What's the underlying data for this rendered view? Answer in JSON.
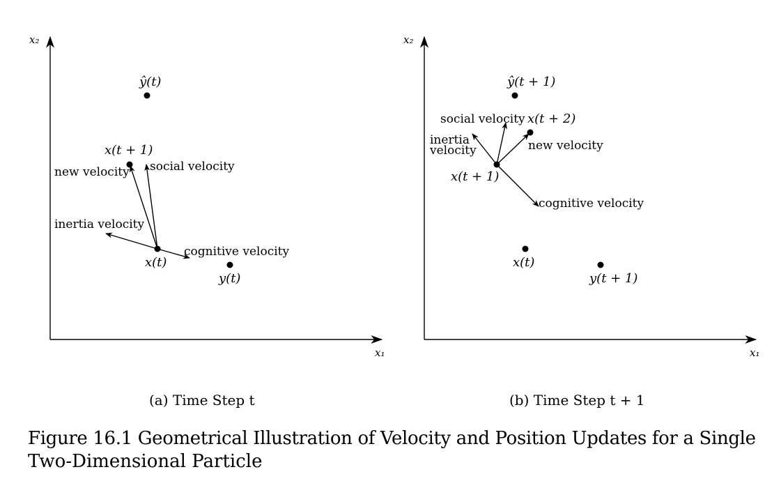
{
  "panel_a": {
    "x_axis_label": "x₁",
    "y_axis_label": "x₂",
    "label_yhat": "ŷ(t)",
    "label_x_next": "x(t + 1)",
    "label_new_velocity": "new velocity",
    "label_social_velocity": "social velocity",
    "label_inertia_velocity": "inertia velocity",
    "label_cognitive_velocity": "cognitive velocity",
    "label_x": "x(t)",
    "label_y": "y(t)",
    "caption": "(a) Time Step t"
  },
  "panel_b": {
    "x_axis_label": "x₁",
    "y_axis_label": "x₂",
    "label_yhat": "ŷ(t + 1)",
    "label_social_velocity": "social velocity",
    "label_x_next2": "x(t + 2)",
    "label_inertia_line1": "inertia",
    "label_inertia_line2": "velocity",
    "label_new_velocity": "new velocity",
    "label_x_next": "x(t + 1)",
    "label_cognitive_velocity": "cognitive velocity",
    "label_x": "x(t)",
    "label_y": "y(t + 1)",
    "caption": "(b) Time Step t + 1"
  },
  "figure_caption_line1": "Figure 16.1 Geometrical Illustration of Velocity and Position Updates for a Single",
  "figure_caption_line2": "Two-Dimensional Particle"
}
